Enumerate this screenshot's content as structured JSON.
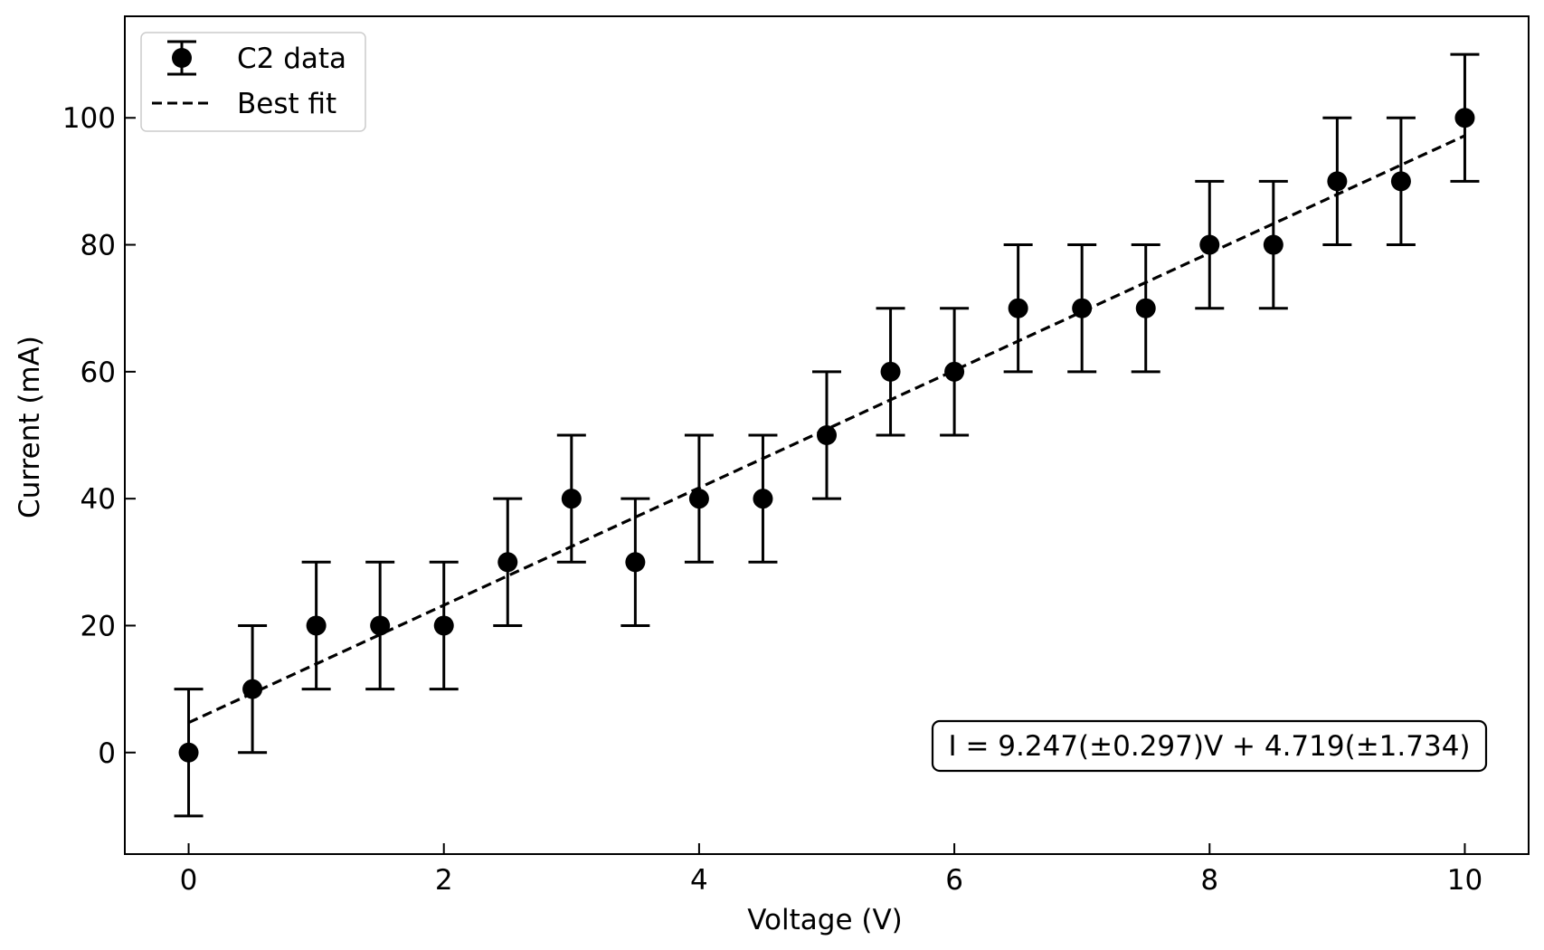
{
  "chart_data": {
    "type": "scatter",
    "title": "",
    "xlabel": "Voltage (V)",
    "ylabel": "Current (mA)",
    "xlim": [
      -0.5,
      10.5
    ],
    "ylim": [
      -16,
      116
    ],
    "xticks": [
      0,
      2,
      4,
      6,
      8,
      10
    ],
    "yticks": [
      0,
      20,
      40,
      60,
      80,
      100
    ],
    "grid": false,
    "legend_position": "top-left",
    "series": [
      {
        "name": "C2 data",
        "style": "points-with-errorbars",
        "x": [
          0,
          0.5,
          1,
          1.5,
          2,
          2.5,
          3,
          3.5,
          4,
          4.5,
          5,
          5.5,
          6,
          6.5,
          7,
          7.5,
          8,
          8.5,
          9,
          9.5,
          10
        ],
        "y": [
          0,
          10,
          20,
          20,
          20,
          30,
          40,
          30,
          40,
          40,
          50,
          60,
          60,
          70,
          70,
          70,
          80,
          80,
          90,
          90,
          100
        ],
        "yerr": 10,
        "color": "#000000"
      },
      {
        "name": "Best fit",
        "style": "dashed-line",
        "slope": 9.247,
        "intercept": 4.719,
        "x_range": [
          0,
          10
        ],
        "color": "#000000"
      }
    ],
    "annotation": {
      "text": "I = 9.247(±0.297)V + 4.719(±1.734)",
      "position": "bottom-right"
    }
  }
}
